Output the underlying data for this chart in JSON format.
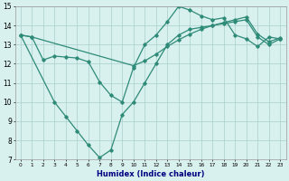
{
  "line1_x": [
    0,
    1,
    2,
    3,
    4,
    5,
    6,
    7,
    8,
    9,
    10,
    11,
    12,
    13,
    14,
    15,
    16,
    17,
    18,
    19,
    20,
    21,
    22,
    23
  ],
  "line1_y": [
    13.5,
    13.4,
    12.2,
    12.4,
    12.35,
    12.3,
    12.1,
    11.05,
    10.35,
    10.0,
    11.8,
    13.0,
    13.5,
    14.2,
    15.0,
    14.8,
    14.5,
    14.3,
    14.4,
    13.5,
    13.3,
    12.9,
    13.4,
    13.3
  ],
  "line2_x": [
    0,
    1,
    10,
    11,
    12,
    13,
    14,
    15,
    16,
    17,
    18,
    19,
    20,
    21,
    22,
    23
  ],
  "line2_y": [
    13.5,
    13.4,
    11.9,
    12.15,
    12.5,
    12.9,
    13.25,
    13.55,
    13.8,
    14.0,
    14.15,
    14.3,
    14.45,
    13.55,
    13.15,
    13.35
  ],
  "line3_x": [
    0,
    3,
    4,
    5,
    6,
    7,
    8,
    9,
    10,
    11,
    12,
    13,
    14,
    15,
    16,
    17,
    18,
    19,
    20,
    21,
    22,
    23
  ],
  "line3_y": [
    13.5,
    10.0,
    9.25,
    8.5,
    7.75,
    7.1,
    7.5,
    9.35,
    10.0,
    11.0,
    12.0,
    13.0,
    13.5,
    13.8,
    13.9,
    14.0,
    14.1,
    14.2,
    14.3,
    13.4,
    13.0,
    13.3
  ],
  "color": "#2E8B77",
  "bg_color": "#D8F0EE",
  "grid_color": "#AACFCC",
  "xlabel": "Humidex (Indice chaleur)",
  "ylim": [
    7,
    15
  ],
  "xlim": [
    -0.5,
    23.5
  ],
  "yticks": [
    7,
    8,
    9,
    10,
    11,
    12,
    13,
    14,
    15
  ],
  "xticks": [
    0,
    1,
    2,
    3,
    4,
    5,
    6,
    7,
    8,
    9,
    10,
    11,
    12,
    13,
    14,
    15,
    16,
    17,
    18,
    19,
    20,
    21,
    22,
    23
  ]
}
